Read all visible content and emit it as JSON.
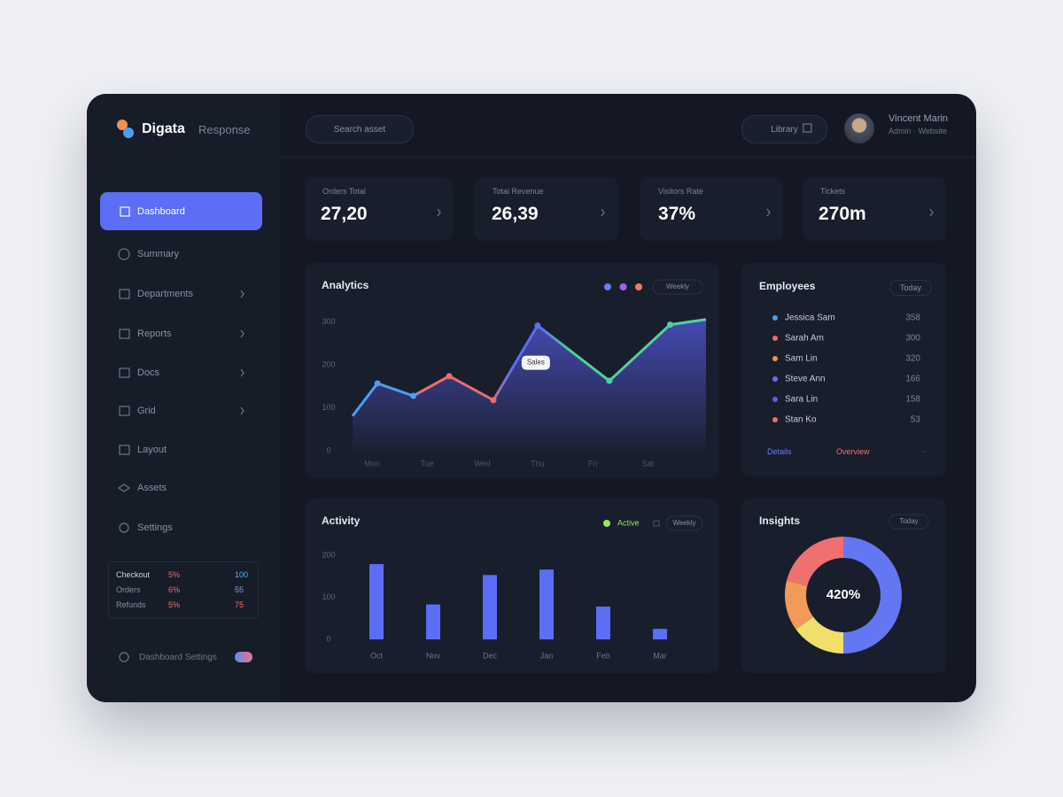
{
  "brand": {
    "name": "Digata",
    "tagline": "Response"
  },
  "search": "Search asset",
  "library": "Library",
  "user": {
    "name": "Vincent Marin",
    "role": "Admin · Website"
  },
  "nav": [
    "Dashboard",
    "Summary",
    "Departments",
    "Reports",
    "Docs",
    "Grid",
    "Layout",
    "Assets",
    "Settings"
  ],
  "sidebar_table": {
    "rows": [
      [
        "Checkout",
        "5%",
        "100"
      ],
      [
        "Orders",
        "6%",
        "55"
      ],
      [
        "Refunds",
        "5%",
        "75"
      ]
    ]
  },
  "footer_setting": "Dashboard Settings",
  "kpis": [
    {
      "label": "Orders Total",
      "value": "27,20"
    },
    {
      "label": "Total Revenue",
      "value": "26,39"
    },
    {
      "label": "Visitors Rate",
      "value": "37%"
    },
    {
      "label": "Tickets",
      "value": "270m"
    }
  ],
  "employees": {
    "title": "Employees",
    "filter": "Today",
    "rows": [
      {
        "name": "Jessica Sam",
        "value": "358",
        "color": "#4d9ef0"
      },
      {
        "name": "Sarah Am",
        "value": "300",
        "color": "#f06a6a"
      },
      {
        "name": "Sam Lin",
        "value": "320",
        "color": "#f0914d"
      },
      {
        "name": "Steve Ann",
        "value": "166",
        "color": "#6b6cf0"
      },
      {
        "name": "Sara Lin",
        "value": "158",
        "color": "#5b5ef0"
      },
      {
        "name": "Stan Ko",
        "value": "53",
        "color": "#f07060"
      }
    ],
    "links": [
      "Details",
      "Overview"
    ]
  },
  "chart_data": [
    {
      "type": "line",
      "title": "Analytics",
      "filter": "Weekly",
      "annotation": "Sales",
      "legend_colors": [
        "#6b7cf6",
        "#a064e8",
        "#f07e5e"
      ],
      "x": [
        0.65,
        1.1,
        1.75,
        2.4,
        3.2,
        4,
        5.3,
        6.4,
        7.05
      ],
      "values": [
        81,
        157,
        128,
        174,
        118,
        292,
        163,
        294,
        306
      ],
      "color": "#3d43a0",
      "xlim": [
        0.65,
        7.05
      ],
      "xticks": [
        {
          "value": 1,
          "label": "Mon"
        },
        {
          "value": 2,
          "label": "Tue"
        },
        {
          "value": 3,
          "label": "Wed"
        },
        {
          "value": 4,
          "label": "Thu"
        },
        {
          "value": 5,
          "label": "Fri"
        },
        {
          "value": 6,
          "label": "Sat"
        }
      ],
      "ylim": [
        0,
        320
      ],
      "yticks": [
        0,
        100,
        200,
        300
      ]
    },
    {
      "type": "bar",
      "title": "Activity",
      "legend": "Active",
      "legend_color": "#9be85a",
      "filter": "Weekly",
      "categories": [
        "Oct",
        "Nov",
        "Dec",
        "Jan",
        "Feb",
        "Mar"
      ],
      "values": [
        179,
        83,
        153,
        166,
        78,
        25
      ],
      "color": "#5b6ef5",
      "ylim": [
        0,
        200
      ],
      "yticks": [
        0,
        100,
        200
      ]
    },
    {
      "type": "pie",
      "title": "Insights",
      "filter": "Today",
      "center_label": "420%",
      "values": [
        50,
        15,
        14,
        21
      ],
      "colors": [
        "#6477f2",
        "#f0e06a",
        "#f29a5a",
        "#f07070"
      ]
    }
  ]
}
